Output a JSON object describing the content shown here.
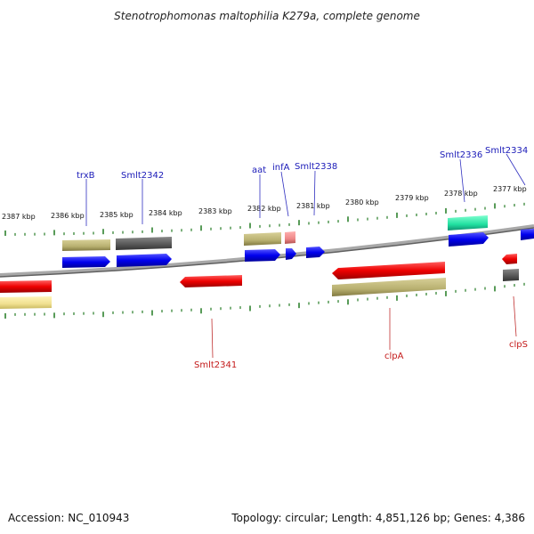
{
  "title": "Stenotrophomonas maltophilia K279a, complete genome",
  "footer": {
    "accession": "Accession: NC_010943",
    "summary": "Topology: circular; Length: 4,851,126 bp; Genes: 4,386"
  },
  "scale_labels": [
    "2387 kbp",
    "2386 kbp",
    "2385 kbp",
    "2384 kbp",
    "2383 kbp",
    "2382 kbp",
    "2381 kbp",
    "2380 kbp",
    "2379 kbp",
    "2378 kbp",
    "2377 kbp"
  ],
  "gene_labels_top": [
    "trxB",
    "Smlt2342",
    "aat",
    "infA",
    "Smlt2338",
    "Smlt2336",
    "Smlt2334"
  ],
  "gene_labels_bottom": [
    "Smlt2341",
    "clpA",
    "clpS"
  ],
  "colors": {
    "forward_cds": "#0000ee",
    "reverse_cds": "#ee0000",
    "rna": "#20e0a0",
    "pseudo": "#ee8888",
    "cog_olive": "#b8b070",
    "cog_gray": "#555555",
    "cog_yellow": "#f0e090",
    "backbone": "#808080",
    "tick": "#107010",
    "label_top": "#1a1ab8",
    "label_bottom": "#c41a1a"
  }
}
